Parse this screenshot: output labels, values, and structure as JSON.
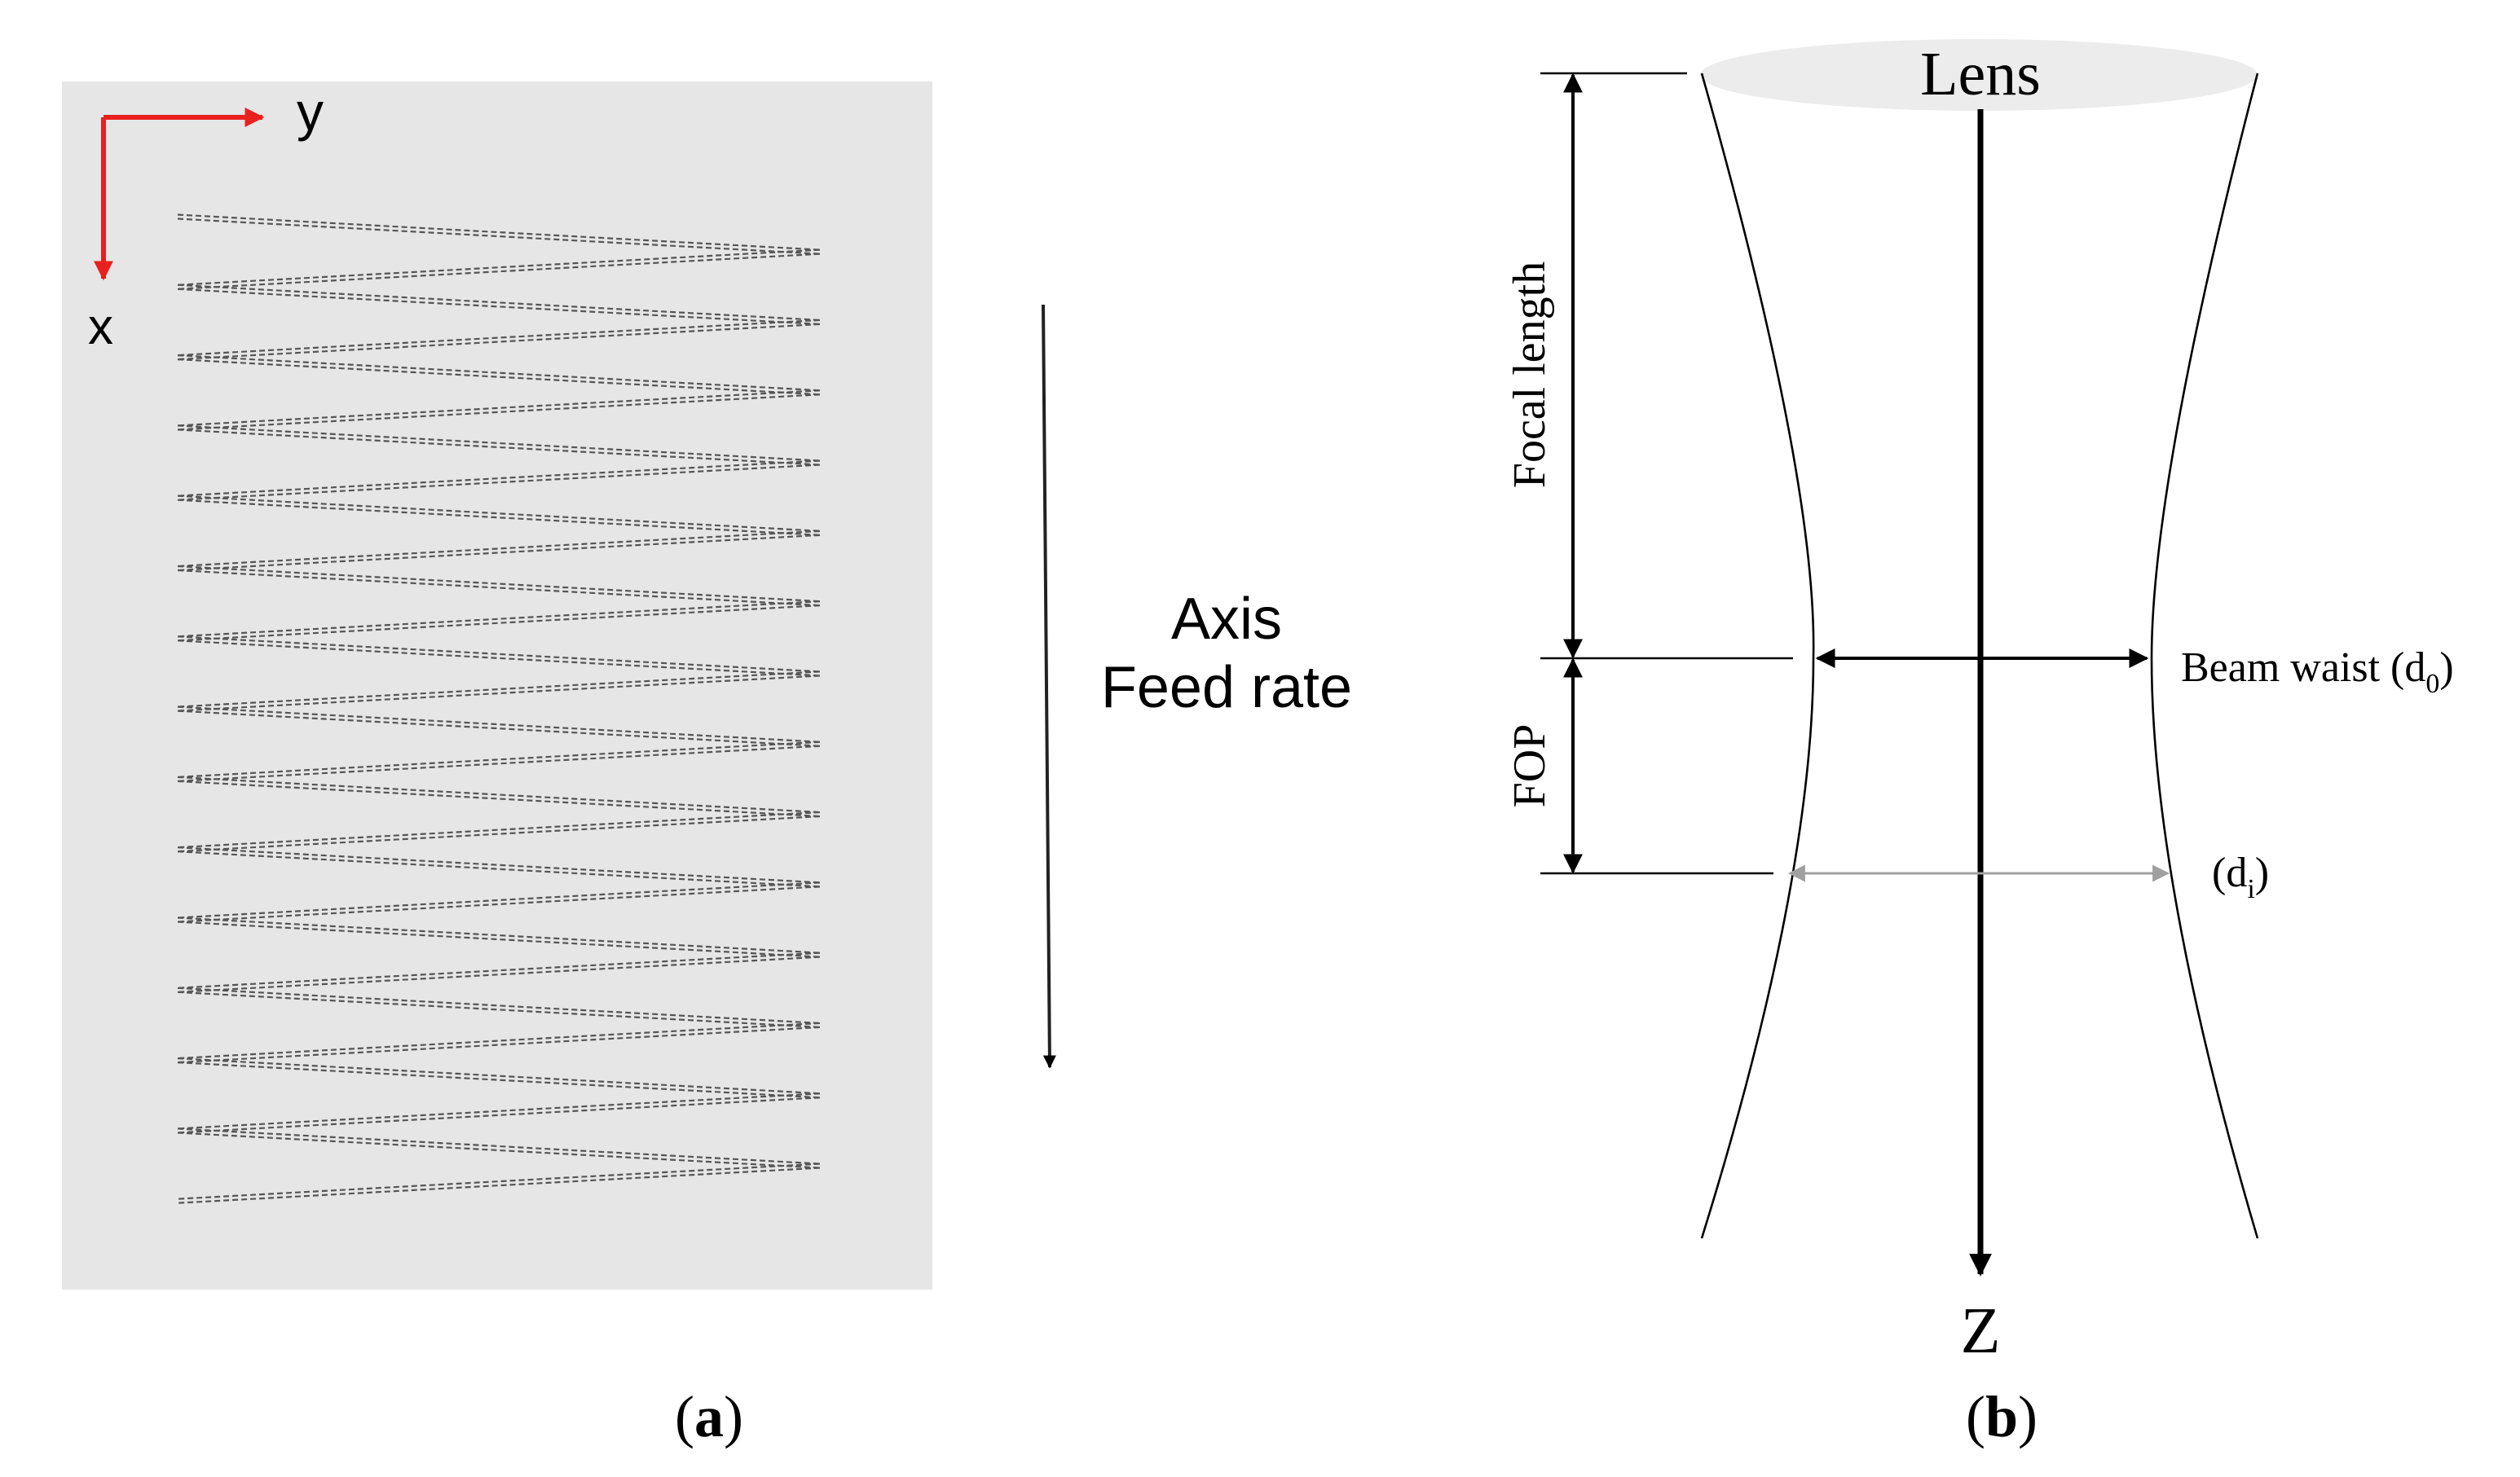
{
  "panel_a": {
    "axis_y_label": "y",
    "axis_x_label": "x",
    "feed_label_line1": "Axis",
    "feed_label_line2": "Feed rate",
    "caption_open": "(",
    "caption_letter": "a",
    "caption_close": ")",
    "zigzag_passes": 14,
    "colors": {
      "panel_bg": "#e6e6e6",
      "axis_arrow": "#e8201f",
      "path": "#555555",
      "feed_arrow": "#222222"
    }
  },
  "panel_b": {
    "lens_label": "Lens",
    "focal_length_label": "Focal length",
    "fop_label": "FOP",
    "beam_waist_label": "Beam waist (d",
    "beam_waist_sub": "0",
    "beam_waist_close": ")",
    "di_open": "(d",
    "di_sub": "i",
    "di_close": ")",
    "z_label": "Z",
    "caption_open": "(",
    "caption_letter": "b",
    "caption_close": ")",
    "colors": {
      "lens_fill": "#ececec",
      "line": "#000000",
      "di_arrow": "#a0a0a0"
    }
  }
}
